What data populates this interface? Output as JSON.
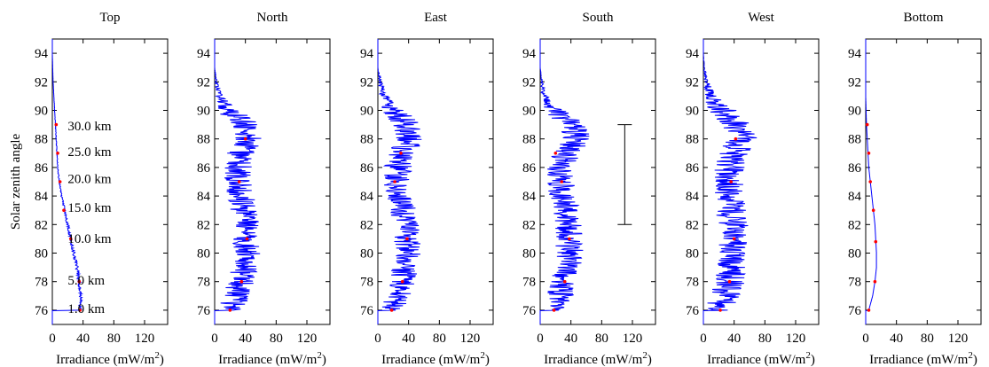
{
  "chart_data": [
    {
      "type": "line",
      "title": "Top",
      "xlabel": "Irradiance (mW/m",
      "xlabel_sup": "2",
      "xlabel_end": ")",
      "ylabel": "Solar zenith angle",
      "xlim": [
        0,
        150
      ],
      "ylim": [
        75,
        95
      ],
      "xticks": [
        0,
        40,
        80,
        120
      ],
      "yticks": [
        76,
        78,
        80,
        82,
        84,
        86,
        88,
        90,
        92,
        94
      ],
      "series": [
        {
          "color": "#0000ff",
          "noise": 2,
          "points": [
            [
              36,
              76
            ],
            [
              37,
              77
            ],
            [
              35,
              78
            ],
            [
              32,
              79
            ],
            [
              28,
              80
            ],
            [
              24,
              81
            ],
            [
              20,
              82
            ],
            [
              16,
              83
            ],
            [
              12,
              84
            ],
            [
              9,
              85
            ],
            [
              7,
              86
            ],
            [
              6,
              87
            ],
            [
              5,
              88
            ],
            [
              4,
              89
            ],
            [
              3,
              90
            ],
            [
              2,
              91
            ],
            [
              1,
              92
            ],
            [
              0.5,
              93
            ],
            [
              0,
              94
            ],
            [
              0,
              95
            ]
          ]
        }
      ],
      "markers": {
        "color": "#ff0000",
        "points": [
          [
            36,
            76
          ],
          [
            35,
            78
          ],
          [
            24,
            81
          ],
          [
            15,
            83
          ],
          [
            10,
            85
          ],
          [
            7,
            87
          ],
          [
            5,
            89
          ]
        ]
      },
      "annotations": [
        {
          "text": "30.0 km",
          "x": 20,
          "y": 88.6
        },
        {
          "text": "25.0 km",
          "x": 20,
          "y": 86.8
        },
        {
          "text": "20.0 km",
          "x": 20,
          "y": 84.9
        },
        {
          "text": "15.0 km",
          "x": 20,
          "y": 82.9
        },
        {
          "text": "10.0 km",
          "x": 20,
          "y": 80.7
        },
        {
          "text": "5.0 km",
          "x": 20,
          "y": 77.8
        },
        {
          "text": "1.0 km",
          "x": 20,
          "y": 75.8
        }
      ]
    },
    {
      "type": "line",
      "title": "North",
      "xlabel": "Irradiance (mW/m",
      "xlabel_sup": "2",
      "xlabel_end": ")",
      "xlim": [
        0,
        150
      ],
      "ylim": [
        75,
        95
      ],
      "xticks": [
        0,
        40,
        80,
        120
      ],
      "yticks": [
        76,
        78,
        80,
        82,
        84,
        86,
        88,
        90,
        92,
        94
      ],
      "series": [
        {
          "color": "#0000ff",
          "noise": 18,
          "points": [
            [
              20,
              76
            ],
            [
              28,
              77
            ],
            [
              35,
              78
            ],
            [
              40,
              79
            ],
            [
              42,
              80
            ],
            [
              42,
              81
            ],
            [
              40,
              82
            ],
            [
              38,
              83
            ],
            [
              34,
              84
            ],
            [
              30,
              85
            ],
            [
              30,
              86
            ],
            [
              34,
              87
            ],
            [
              45,
              88
            ],
            [
              40,
              89
            ],
            [
              18,
              90
            ],
            [
              6,
              91
            ],
            [
              2,
              92
            ],
            [
              0,
              93
            ],
            [
              0,
              94
            ],
            [
              0,
              95
            ]
          ]
        }
      ],
      "markers": {
        "color": "#ff0000",
        "points": [
          [
            20,
            76
          ],
          [
            35,
            78
          ],
          [
            42,
            81
          ],
          [
            32,
            85
          ],
          [
            40,
            88
          ]
        ]
      }
    },
    {
      "type": "line",
      "title": "East",
      "xlabel": "Irradiance (mW/m",
      "xlabel_sup": "2",
      "xlabel_end": ")",
      "xlim": [
        0,
        150
      ],
      "ylim": [
        75,
        95
      ],
      "xticks": [
        0,
        40,
        80,
        120
      ],
      "yticks": [
        76,
        78,
        80,
        82,
        84,
        86,
        88,
        90,
        92,
        94
      ],
      "series": [
        {
          "color": "#0000ff",
          "noise": 18,
          "points": [
            [
              18,
              76
            ],
            [
              26,
              77
            ],
            [
              32,
              78
            ],
            [
              36,
              79
            ],
            [
              38,
              80
            ],
            [
              38,
              81
            ],
            [
              36,
              82
            ],
            [
              32,
              83
            ],
            [
              28,
              84
            ],
            [
              24,
              85
            ],
            [
              26,
              86
            ],
            [
              32,
              87
            ],
            [
              42,
              88
            ],
            [
              38,
              89
            ],
            [
              20,
              90
            ],
            [
              8,
              91
            ],
            [
              3,
              92
            ],
            [
              0,
              93
            ],
            [
              0,
              94
            ],
            [
              0,
              95
            ]
          ]
        }
      ],
      "markers": {
        "color": "#ff0000",
        "points": [
          [
            18,
            76
          ],
          [
            32,
            78
          ],
          [
            38,
            81
          ],
          [
            22,
            85
          ],
          [
            30,
            87
          ]
        ]
      }
    },
    {
      "type": "line",
      "title": "South",
      "xlabel": "Irradiance (mW/m",
      "xlabel_sup": "2",
      "xlabel_end": ")",
      "xlim": [
        0,
        150
      ],
      "ylim": [
        75,
        95
      ],
      "xticks": [
        0,
        40,
        80,
        120
      ],
      "yticks": [
        76,
        78,
        80,
        82,
        84,
        86,
        88,
        90,
        92,
        94
      ],
      "series": [
        {
          "color": "#0000ff",
          "noise": 18,
          "points": [
            [
              18,
              76
            ],
            [
              26,
              77
            ],
            [
              32,
              78
            ],
            [
              36,
              79
            ],
            [
              38,
              80
            ],
            [
              38,
              81
            ],
            [
              36,
              82
            ],
            [
              34,
              83
            ],
            [
              30,
              84
            ],
            [
              26,
              85
            ],
            [
              26,
              86
            ],
            [
              34,
              87
            ],
            [
              48,
              88
            ],
            [
              42,
              89
            ],
            [
              18,
              90
            ],
            [
              6,
              91
            ],
            [
              2,
              92
            ],
            [
              0,
              93
            ],
            [
              0,
              94
            ],
            [
              0,
              95
            ]
          ]
        }
      ],
      "markers": {
        "color": "#ff0000",
        "points": [
          [
            18,
            76
          ],
          [
            32,
            78
          ],
          [
            38,
            81
          ],
          [
            28,
            85
          ],
          [
            20,
            87
          ]
        ]
      },
      "errorbar": {
        "x": 110,
        "y_low": 82,
        "y_high": 89
      }
    },
    {
      "type": "line",
      "title": "West",
      "xlabel": "Irradiance (mW/m",
      "xlabel_sup": "2",
      "xlabel_end": ")",
      "xlim": [
        0,
        150
      ],
      "ylim": [
        75,
        95
      ],
      "xticks": [
        0,
        40,
        80,
        120
      ],
      "yticks": [
        76,
        78,
        80,
        82,
        84,
        86,
        88,
        90,
        92,
        94
      ],
      "series": [
        {
          "color": "#0000ff",
          "noise": 20,
          "points": [
            [
              22,
              76
            ],
            [
              28,
              77
            ],
            [
              34,
              78
            ],
            [
              38,
              79
            ],
            [
              40,
              80
            ],
            [
              40,
              81
            ],
            [
              38,
              82
            ],
            [
              36,
              83
            ],
            [
              34,
              84
            ],
            [
              32,
              85
            ],
            [
              34,
              86
            ],
            [
              40,
              87
            ],
            [
              50,
              88
            ],
            [
              44,
              89
            ],
            [
              24,
              90
            ],
            [
              10,
              91
            ],
            [
              4,
              92
            ],
            [
              1,
              93
            ],
            [
              0,
              94
            ],
            [
              0,
              95
            ]
          ]
        }
      ],
      "markers": {
        "color": "#ff0000",
        "points": [
          [
            22,
            76
          ],
          [
            34,
            78
          ],
          [
            40,
            81
          ],
          [
            36,
            85
          ],
          [
            42,
            88
          ]
        ]
      }
    },
    {
      "type": "line",
      "title": "Bottom",
      "xlabel": "Irradiance (mW/m",
      "xlabel_sup": "2",
      "xlabel_end": ")",
      "xlim": [
        0,
        150
      ],
      "ylim": [
        75,
        95
      ],
      "xticks": [
        0,
        40,
        80,
        120
      ],
      "yticks": [
        76,
        78,
        80,
        82,
        84,
        86,
        88,
        90,
        92,
        94
      ],
      "series": [
        {
          "color": "#0000ff",
          "noise": 0,
          "points": [
            [
              4,
              76
            ],
            [
              9,
              77
            ],
            [
              12,
              78
            ],
            [
              14,
              79
            ],
            [
              14,
              80
            ],
            [
              13,
              81
            ],
            [
              12,
              82
            ],
            [
              10,
              83
            ],
            [
              8,
              84
            ],
            [
              6,
              85
            ],
            [
              4,
              86
            ],
            [
              3,
              87
            ],
            [
              2,
              88
            ],
            [
              1,
              89
            ],
            [
              0.5,
              90
            ],
            [
              0,
              91
            ],
            [
              0,
              92
            ],
            [
              0,
              93
            ],
            [
              0,
              94
            ],
            [
              0,
              95
            ]
          ]
        }
      ],
      "markers": {
        "color": "#ff0000",
        "points": [
          [
            4,
            76
          ],
          [
            12,
            78
          ],
          [
            13,
            80.8
          ],
          [
            10,
            83
          ],
          [
            6,
            85
          ],
          [
            4,
            87
          ],
          [
            2,
            89
          ]
        ]
      }
    }
  ]
}
